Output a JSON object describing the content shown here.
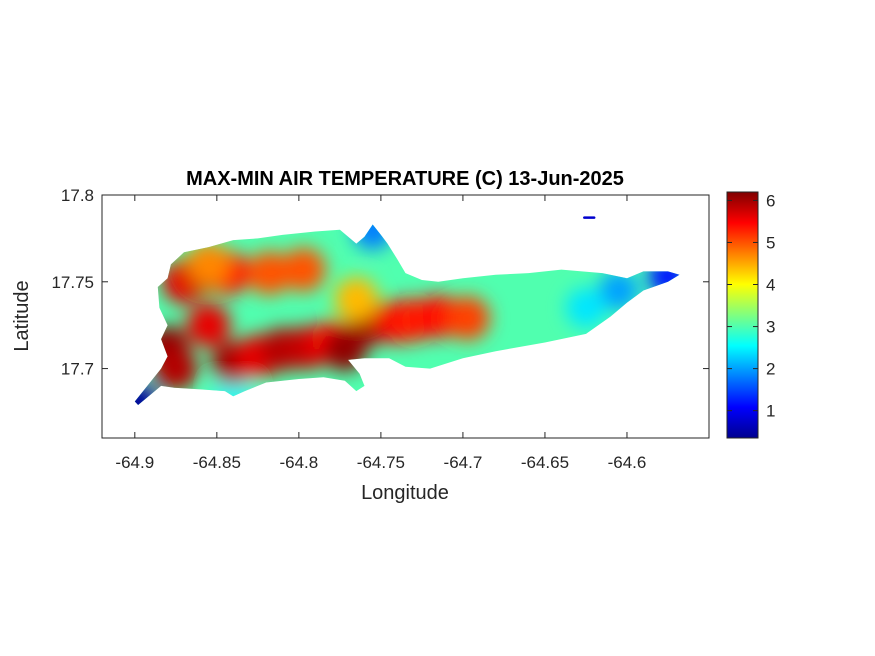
{
  "chart_data": {
    "type": "heatmap",
    "title": "MAX-MIN AIR TEMPERATURE (C) 13-Jun-2025",
    "xlabel": "Longitude",
    "ylabel": "Latitude",
    "xlim": [
      -64.92,
      -64.55
    ],
    "ylim": [
      17.66,
      17.8
    ],
    "xticks": [
      -64.9,
      -64.85,
      -64.8,
      -64.75,
      -64.7,
      -64.65,
      -64.6
    ],
    "xtick_labels": [
      "-64.9",
      "-64.85",
      "-64.8",
      "-64.75",
      "-64.7",
      "-64.65",
      "-64.6"
    ],
    "yticks": [
      17.7,
      17.75,
      17.8
    ],
    "ytick_labels": [
      "17.7",
      "17.75",
      "17.8"
    ],
    "colormap": "jet",
    "colorbar": {
      "range": [
        0.35,
        6.2
      ],
      "ticks": [
        1,
        2,
        3,
        4,
        5,
        6
      ],
      "tick_labels": [
        "1",
        "2",
        "3",
        "4",
        "5",
        "6"
      ],
      "placement": "right"
    },
    "grid": false,
    "island_outline": [
      [
        -64.898,
        17.679
      ],
      [
        -64.884,
        17.69
      ],
      [
        -64.876,
        17.689
      ],
      [
        -64.86,
        17.688
      ],
      [
        -64.845,
        17.687
      ],
      [
        -64.84,
        17.684
      ],
      [
        -64.833,
        17.687
      ],
      [
        -64.82,
        17.692
      ],
      [
        -64.8,
        17.694
      ],
      [
        -64.785,
        17.695
      ],
      [
        -64.772,
        17.693
      ],
      [
        -64.765,
        17.687
      ],
      [
        -64.76,
        17.69
      ],
      [
        -64.763,
        17.697
      ],
      [
        -64.77,
        17.705
      ],
      [
        -64.76,
        17.706
      ],
      [
        -64.745,
        17.706
      ],
      [
        -64.735,
        17.701
      ],
      [
        -64.72,
        17.7
      ],
      [
        -64.7,
        17.706
      ],
      [
        -64.68,
        17.71
      ],
      [
        -64.65,
        17.715
      ],
      [
        -64.625,
        17.72
      ],
      [
        -64.61,
        17.73
      ],
      [
        -64.6,
        17.738
      ],
      [
        -64.59,
        17.745
      ],
      [
        -64.575,
        17.75
      ],
      [
        -64.568,
        17.754
      ],
      [
        -64.575,
        17.756
      ],
      [
        -64.59,
        17.756
      ],
      [
        -64.6,
        17.752
      ],
      [
        -64.615,
        17.755
      ],
      [
        -64.64,
        17.757
      ],
      [
        -64.66,
        17.755
      ],
      [
        -64.68,
        17.754
      ],
      [
        -64.7,
        17.752
      ],
      [
        -64.715,
        17.75
      ],
      [
        -64.725,
        17.751
      ],
      [
        -64.735,
        17.755
      ],
      [
        -64.74,
        17.763
      ],
      [
        -64.746,
        17.772
      ],
      [
        -64.75,
        17.777
      ],
      [
        -64.755,
        17.783
      ],
      [
        -64.76,
        17.776
      ],
      [
        -64.765,
        17.772
      ],
      [
        -64.775,
        17.78
      ],
      [
        -64.79,
        17.779
      ],
      [
        -64.81,
        17.777
      ],
      [
        -64.825,
        17.775
      ],
      [
        -64.84,
        17.774
      ],
      [
        -64.855,
        17.77
      ],
      [
        -64.87,
        17.767
      ],
      [
        -64.878,
        17.76
      ],
      [
        -64.88,
        17.752
      ],
      [
        -64.886,
        17.747
      ],
      [
        -64.885,
        17.735
      ],
      [
        -64.88,
        17.725
      ],
      [
        -64.884,
        17.717
      ],
      [
        -64.88,
        17.707
      ],
      [
        -64.884,
        17.7
      ],
      [
        -64.9,
        17.681
      ]
    ],
    "islet": [
      [
        -64.626,
        17.787
      ],
      [
        -64.62,
        17.787
      ]
    ],
    "hotspots": [
      {
        "lon": -64.88,
        "lat": 17.712,
        "value": 6.1
      },
      {
        "lon": -64.875,
        "lat": 17.7,
        "value": 5.9
      },
      {
        "lon": -64.87,
        "lat": 17.75,
        "value": 5.6
      },
      {
        "lon": -64.858,
        "lat": 17.756,
        "value": 5.8
      },
      {
        "lon": -64.843,
        "lat": 17.755,
        "value": 5.4
      },
      {
        "lon": -64.855,
        "lat": 17.725,
        "value": 5.6
      },
      {
        "lon": -64.84,
        "lat": 17.703,
        "value": 6.0
      },
      {
        "lon": -64.825,
        "lat": 17.707,
        "value": 5.6
      },
      {
        "lon": -64.81,
        "lat": 17.711,
        "value": 5.9
      },
      {
        "lon": -64.795,
        "lat": 17.712,
        "value": 5.8
      },
      {
        "lon": -64.78,
        "lat": 17.715,
        "value": 5.4
      },
      {
        "lon": -64.772,
        "lat": 17.711,
        "value": 6.1
      },
      {
        "lon": -64.757,
        "lat": 17.726,
        "value": 6.0
      },
      {
        "lon": -64.74,
        "lat": 17.727,
        "value": 5.5
      },
      {
        "lon": -64.73,
        "lat": 17.728,
        "value": 5.3
      },
      {
        "lon": -64.715,
        "lat": 17.73,
        "value": 5.4
      },
      {
        "lon": -64.697,
        "lat": 17.729,
        "value": 5.1
      },
      {
        "lon": -64.818,
        "lat": 17.755,
        "value": 5.0
      },
      {
        "lon": -64.797,
        "lat": 17.757,
        "value": 5.0
      },
      {
        "lon": -64.765,
        "lat": 17.74,
        "value": 4.4
      },
      {
        "lon": -64.855,
        "lat": 17.76,
        "value": 4.7
      }
    ],
    "coolspots": [
      {
        "lon": -64.898,
        "lat": 17.68,
        "value": 0.5
      },
      {
        "lon": -64.575,
        "lat": 17.753,
        "value": 1.2
      },
      {
        "lon": -64.605,
        "lat": 17.745,
        "value": 2.0
      },
      {
        "lon": -64.625,
        "lat": 17.735,
        "value": 2.4
      },
      {
        "lon": -64.755,
        "lat": 17.78,
        "value": 1.8
      },
      {
        "lon": -64.84,
        "lat": 17.686,
        "value": 2.6
      },
      {
        "lon": -64.623,
        "lat": 17.787,
        "value": 0.8
      }
    ],
    "background_value": 3.0
  }
}
